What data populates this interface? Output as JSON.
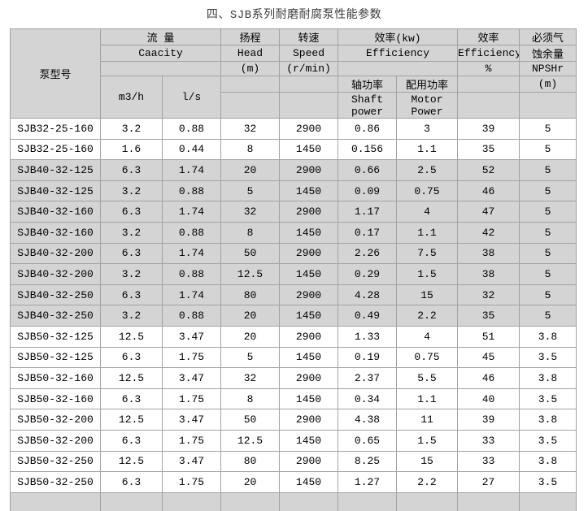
{
  "title": "四、SJB系列耐磨耐腐泵性能参数",
  "colors": {
    "page_bg": "#ffffff",
    "header_bg": "#d4d4d4",
    "shaded_row_bg": "#d4d4d4",
    "border": "#a2a2a2",
    "text": "#000000",
    "title_text": "#3b3b3b"
  },
  "table": {
    "header": {
      "pump_model": "泵型号",
      "flow": {
        "cn": "流 量",
        "en": "Caacity",
        "sub": [
          "m3/h",
          "l/s"
        ]
      },
      "head": {
        "cn": "扬程",
        "en": "Head",
        "unit": "(m)"
      },
      "speed": {
        "cn": "转速",
        "en": "Speed",
        "unit": "(r/min)"
      },
      "power": {
        "cn": "效率(kw)",
        "en": "Efficiency",
        "shaft_cn": "轴功率",
        "shaft_en_l1": "Shaft",
        "shaft_en_l2": "power",
        "motor_cn": "配用功率",
        "motor_en_l1": "Motor",
        "motor_en_l2": "Power"
      },
      "efficiency": {
        "cn": "效率",
        "en": "Efficiency",
        "unit": "%"
      },
      "npsh": {
        "cn_l1": "必须气",
        "cn_l2": "蚀余量",
        "en": "NPSHr",
        "unit": "(m)"
      }
    },
    "rows": [
      {
        "shaded": false,
        "cells": [
          "SJB32-25-160",
          "3.2",
          "0.88",
          "32",
          "2900",
          "0.86",
          "3",
          "39",
          "5"
        ]
      },
      {
        "shaded": false,
        "cells": [
          "SJB32-25-160",
          "1.6",
          "0.44",
          "8",
          "1450",
          "0.156",
          "1.1",
          "35",
          "5"
        ]
      },
      {
        "shaded": true,
        "cells": [
          "SJB40-32-125",
          "6.3",
          "1.74",
          "20",
          "2900",
          "0.66",
          "2.5",
          "52",
          "5"
        ]
      },
      {
        "shaded": true,
        "cells": [
          "SJB40-32-125",
          "3.2",
          "0.88",
          "5",
          "1450",
          "0.09",
          "0.75",
          "46",
          "5"
        ]
      },
      {
        "shaded": true,
        "cells": [
          "SJB40-32-160",
          "6.3",
          "1.74",
          "32",
          "2900",
          "1.17",
          "4",
          "47",
          "5"
        ]
      },
      {
        "shaded": true,
        "cells": [
          "SJB40-32-160",
          "3.2",
          "0.88",
          "8",
          "1450",
          "0.17",
          "1.1",
          "42",
          "5"
        ]
      },
      {
        "shaded": true,
        "cells": [
          "SJB40-32-200",
          "6.3",
          "1.74",
          "50",
          "2900",
          "2.26",
          "7.5",
          "38",
          "5"
        ]
      },
      {
        "shaded": true,
        "cells": [
          "SJB40-32-200",
          "3.2",
          "0.88",
          "12.5",
          "1450",
          "0.29",
          "1.5",
          "38",
          "5"
        ]
      },
      {
        "shaded": true,
        "cells": [
          "SJB40-32-250",
          "6.3",
          "1.74",
          "80",
          "2900",
          "4.28",
          "15",
          "32",
          "5"
        ]
      },
      {
        "shaded": true,
        "cells": [
          "SJB40-32-250",
          "3.2",
          "0.88",
          "20",
          "1450",
          "0.49",
          "2.2",
          "35",
          "5"
        ]
      },
      {
        "shaded": false,
        "cells": [
          "SJB50-32-125",
          "12.5",
          "3.47",
          "20",
          "2900",
          "1.33",
          "4",
          "51",
          "3.8"
        ]
      },
      {
        "shaded": false,
        "cells": [
          "SJB50-32-125",
          "6.3",
          "1.75",
          "5",
          "1450",
          "0.19",
          "0.75",
          "45",
          "3.5"
        ]
      },
      {
        "shaded": false,
        "cells": [
          "SJB50-32-160",
          "12.5",
          "3.47",
          "32",
          "2900",
          "2.37",
          "5.5",
          "46",
          "3.8"
        ]
      },
      {
        "shaded": false,
        "cells": [
          "SJB50-32-160",
          "6.3",
          "1.75",
          "8",
          "1450",
          "0.34",
          "1.1",
          "40",
          "3.5"
        ]
      },
      {
        "shaded": false,
        "cells": [
          "SJB50-32-200",
          "12.5",
          "3.47",
          "50",
          "2900",
          "4.38",
          "11",
          "39",
          "3.8"
        ]
      },
      {
        "shaded": false,
        "cells": [
          "SJB50-32-200",
          "6.3",
          "1.75",
          "12.5",
          "1450",
          "0.65",
          "1.5",
          "33",
          "3.5"
        ]
      },
      {
        "shaded": false,
        "cells": [
          "SJB50-32-250",
          "12.5",
          "3.47",
          "80",
          "2900",
          "8.25",
          "15",
          "33",
          "3.8"
        ]
      },
      {
        "shaded": false,
        "cells": [
          "SJB50-32-250",
          "6.3",
          "1.75",
          "20",
          "1450",
          "1.27",
          "2.2",
          "27",
          "3.5"
        ]
      }
    ],
    "partial_row": {
      "shaded": true,
      "cells": [
        "",
        "",
        "",
        "",
        "",
        "",
        "",
        "",
        ""
      ]
    }
  }
}
